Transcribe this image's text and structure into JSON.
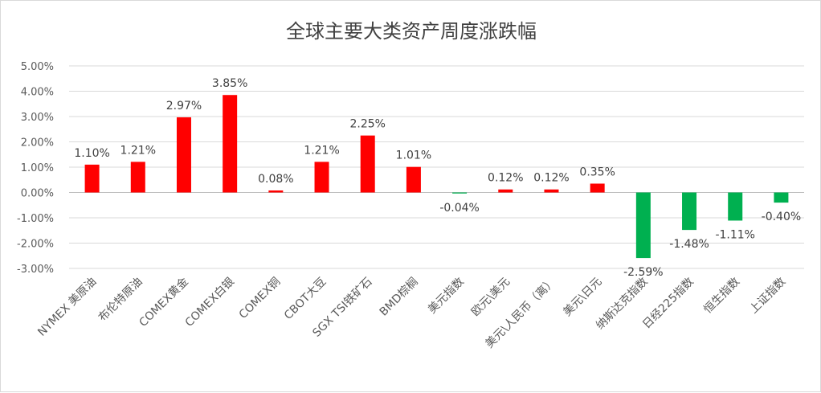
{
  "chart_data": {
    "type": "bar",
    "title": "全球主要大类资产周度涨跌幅",
    "xlabel": "",
    "ylabel": "",
    "ylim": [
      -3.0,
      5.0
    ],
    "yticks": [
      "5.00%",
      "4.00%",
      "3.00%",
      "2.00%",
      "1.00%",
      "0.00%",
      "-1.00%",
      "-2.00%",
      "-3.00%"
    ],
    "grid": true,
    "legend": "none",
    "categories": [
      "NYMEX 美原油",
      "布伦特原油",
      "COMEX黄金",
      "COMEX白银",
      "COMEX铜",
      "CBOT大豆",
      "SGX TSI铁矿石",
      "BMD棕榈",
      "美元指数",
      "欧元\\美元",
      "美元\\人民币（离）",
      "美元\\日元",
      "纳斯达克指数",
      "日经225指数",
      "恒生指数",
      "上证指数"
    ],
    "values": [
      1.1,
      1.21,
      2.97,
      3.85,
      0.08,
      1.21,
      2.25,
      1.01,
      -0.04,
      0.12,
      0.12,
      0.35,
      -2.59,
      -1.48,
      -1.11,
      -0.4
    ],
    "data_labels": [
      "1.10%",
      "1.21%",
      "2.97%",
      "3.85%",
      "0.08%",
      "1.21%",
      "2.25%",
      "1.01%",
      "-0.04%",
      "0.12%",
      "0.12%",
      "0.35%",
      "-2.59%",
      "-1.48%",
      "-1.11%",
      "-0.40%"
    ],
    "colors": [
      "#ff0000",
      "#ff0000",
      "#ff0000",
      "#ff0000",
      "#ff0000",
      "#ff0000",
      "#ff0000",
      "#ff0000",
      "#00b050",
      "#ff0000",
      "#ff0000",
      "#ff0000",
      "#00b050",
      "#00b050",
      "#00b050",
      "#00b050"
    ]
  }
}
